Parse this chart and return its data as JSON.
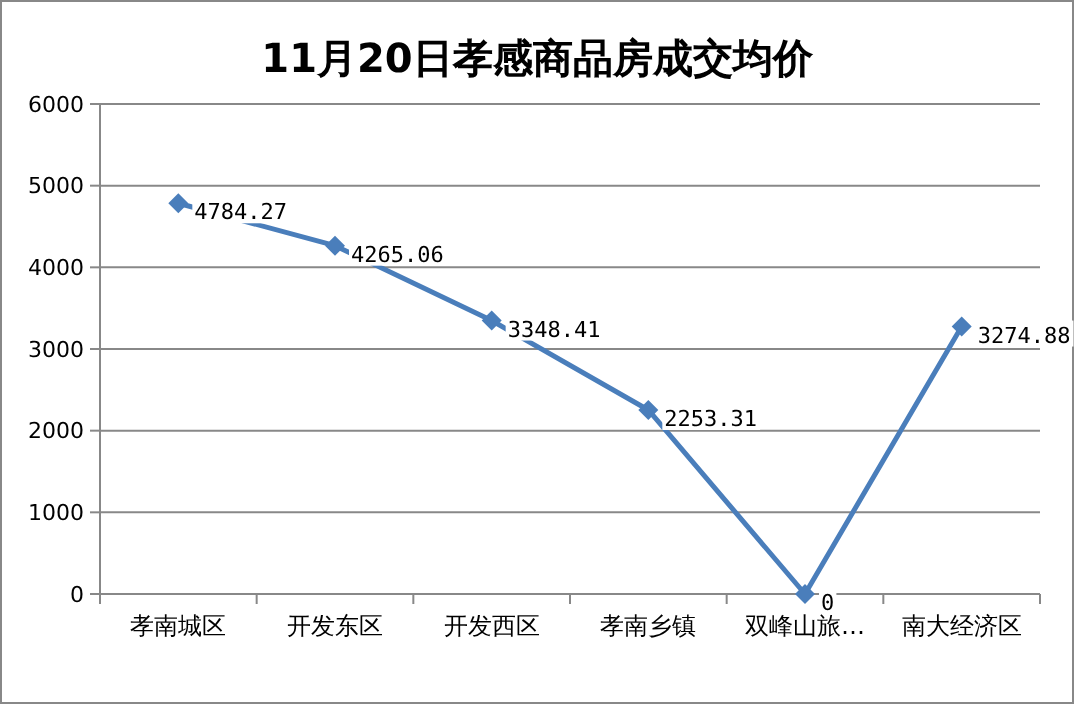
{
  "chart_data": {
    "type": "line",
    "title": "11月20日孝感商品房成交均价",
    "categories": [
      "孝南城区",
      "开发东区",
      "开发西区",
      "孝南乡镇",
      "双峰山旅…",
      "南大经济区"
    ],
    "series": [
      {
        "color": "#4a7ebb",
        "values": [
          4784.27,
          4265.06,
          3348.41,
          2253.31,
          0,
          3274.88
        ]
      }
    ],
    "ylim": [
      0,
      6000
    ],
    "yticks": [
      0,
      1000,
      2000,
      3000,
      4000,
      5000,
      6000
    ],
    "grid": "y",
    "marker": "diamond",
    "data_labels": true
  }
}
